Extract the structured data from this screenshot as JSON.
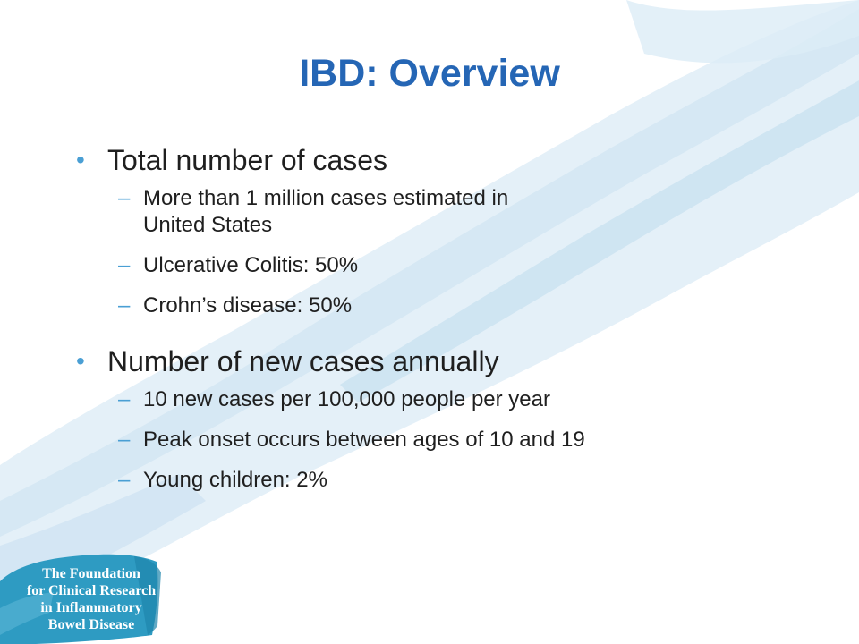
{
  "slide": {
    "title": "IBD: Overview",
    "sections": [
      {
        "heading": "Total number of cases",
        "items": [
          [
            "More than 1 million cases estimated in",
            "United States"
          ],
          [
            "Ulcerative Colitis: 50%"
          ],
          [
            "Crohn’s disease: 50%"
          ]
        ]
      },
      {
        "heading": "Number of new cases annually",
        "items": [
          [
            "10 new cases per 100,000 people per year"
          ],
          [
            "Peak onset occurs between ages of 10 and 19"
          ],
          [
            "Young children: 2%"
          ]
        ]
      }
    ],
    "bullet_glyph": "•",
    "dash_glyph": "–"
  },
  "logo": {
    "lines": [
      "The Foundation",
      "for Clinical Research",
      "in Inflammatory",
      "Bowel Disease"
    ]
  },
  "colors": {
    "title": "#2566b5",
    "bullet": "#4a9fd4",
    "body_text": "#1f1f1f",
    "brush_light": "#d9ebf6",
    "brush_mid": "#b9d9ee",
    "logo_teal": "#2e9bc2"
  }
}
